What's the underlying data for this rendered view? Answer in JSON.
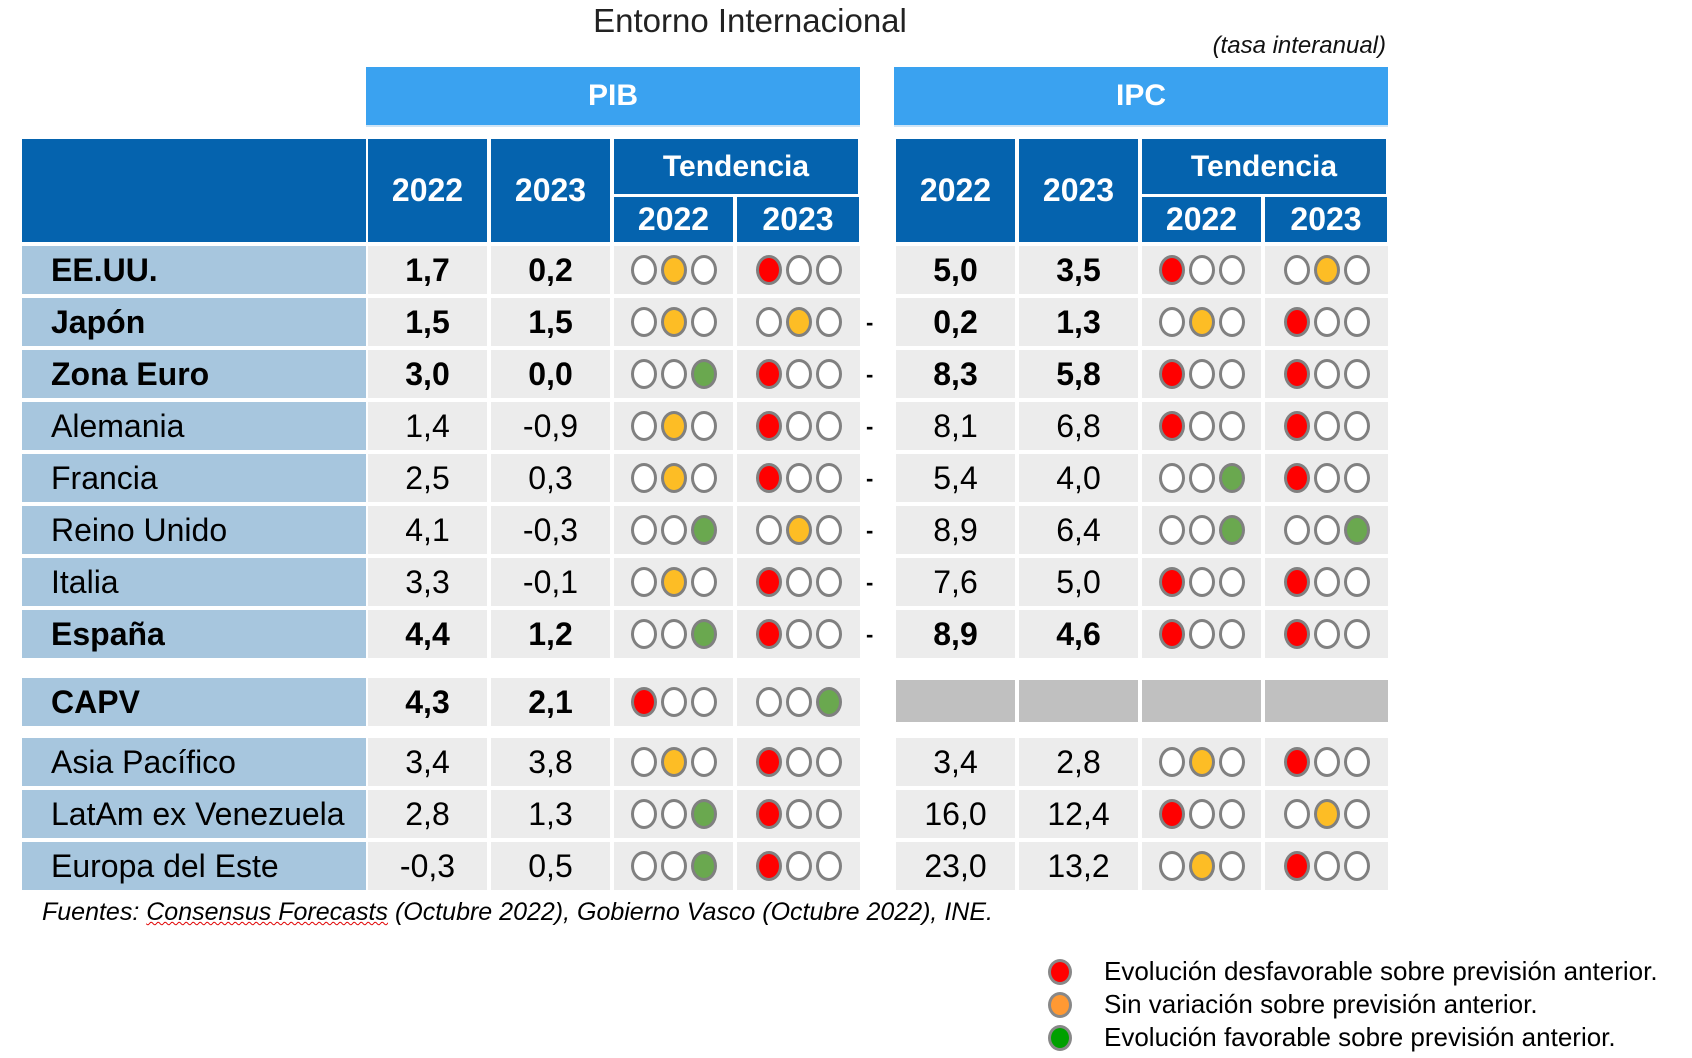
{
  "title": "Entorno Internacional",
  "subtitle": "(tasa interanual)",
  "sections": {
    "pib": "PIB",
    "ipc": "IPC"
  },
  "headers": {
    "y2022": "2022",
    "y2023": "2023",
    "tendencia": "Tendencia"
  },
  "rows": [
    {
      "name": "EE.UU.",
      "bold": true,
      "pib": [
        "1,7",
        "0,2"
      ],
      "pib_trend": [
        [
          "o",
          "a",
          "o"
        ],
        [
          "r",
          "o",
          "o"
        ]
      ],
      "ipc": [
        "5,0",
        "3,5"
      ],
      "ipc_trend": [
        [
          "r",
          "o",
          "o"
        ],
        [
          "o",
          "a",
          "o"
        ]
      ],
      "dash": ""
    },
    {
      "name": "Japón",
      "bold": true,
      "pib": [
        "1,5",
        "1,5"
      ],
      "pib_trend": [
        [
          "o",
          "a",
          "o"
        ],
        [
          "o",
          "a",
          "o"
        ]
      ],
      "ipc": [
        "0,2",
        "1,3"
      ],
      "ipc_trend": [
        [
          "o",
          "a",
          "o"
        ],
        [
          "r",
          "o",
          "o"
        ]
      ],
      "dash": "-"
    },
    {
      "name": "Zona Euro",
      "bold": true,
      "pib": [
        "3,0",
        "0,0"
      ],
      "pib_trend": [
        [
          "o",
          "o",
          "g"
        ],
        [
          "r",
          "o",
          "o"
        ]
      ],
      "ipc": [
        "8,3",
        "5,8"
      ],
      "ipc_trend": [
        [
          "r",
          "o",
          "o"
        ],
        [
          "r",
          "o",
          "o"
        ]
      ],
      "dash": "-"
    },
    {
      "name": "Alemania",
      "bold": false,
      "pib": [
        "1,4",
        "-0,9"
      ],
      "pib_trend": [
        [
          "o",
          "a",
          "o"
        ],
        [
          "r",
          "o",
          "o"
        ]
      ],
      "ipc": [
        "8,1",
        "6,8"
      ],
      "ipc_trend": [
        [
          "r",
          "o",
          "o"
        ],
        [
          "r",
          "o",
          "o"
        ]
      ],
      "dash": "-"
    },
    {
      "name": "Francia",
      "bold": false,
      "pib": [
        "2,5",
        "0,3"
      ],
      "pib_trend": [
        [
          "o",
          "a",
          "o"
        ],
        [
          "r",
          "o",
          "o"
        ]
      ],
      "ipc": [
        "5,4",
        "4,0"
      ],
      "ipc_trend": [
        [
          "o",
          "o",
          "g"
        ],
        [
          "r",
          "o",
          "o"
        ]
      ],
      "dash": "-"
    },
    {
      "name": "Reino Unido",
      "bold": false,
      "pib": [
        "4,1",
        "-0,3"
      ],
      "pib_trend": [
        [
          "o",
          "o",
          "g"
        ],
        [
          "o",
          "a",
          "o"
        ]
      ],
      "ipc": [
        "8,9",
        "6,4"
      ],
      "ipc_trend": [
        [
          "o",
          "o",
          "g"
        ],
        [
          "o",
          "o",
          "g"
        ]
      ],
      "dash": "-"
    },
    {
      "name": "Italia",
      "bold": false,
      "pib": [
        "3,3",
        "-0,1"
      ],
      "pib_trend": [
        [
          "o",
          "a",
          "o"
        ],
        [
          "r",
          "o",
          "o"
        ]
      ],
      "ipc": [
        "7,6",
        "5,0"
      ],
      "ipc_trend": [
        [
          "r",
          "o",
          "o"
        ],
        [
          "r",
          "o",
          "o"
        ]
      ],
      "dash": "-"
    },
    {
      "name": "España",
      "bold": true,
      "pib": [
        "4,4",
        "1,2"
      ],
      "pib_trend": [
        [
          "o",
          "o",
          "g"
        ],
        [
          "r",
          "o",
          "o"
        ]
      ],
      "ipc": [
        "8,9",
        "4,6"
      ],
      "ipc_trend": [
        [
          "r",
          "o",
          "o"
        ],
        [
          "r",
          "o",
          "o"
        ]
      ],
      "dash": "-"
    },
    {
      "name": "CAPV",
      "bold": true,
      "pib": [
        "4,3",
        "2,1"
      ],
      "pib_trend": [
        [
          "r",
          "o",
          "o"
        ],
        [
          "o",
          "o",
          "g"
        ]
      ],
      "ipc": null,
      "ipc_trend": null,
      "dash": ""
    },
    {
      "name": "Asia Pacífico",
      "bold": false,
      "pib": [
        "3,4",
        "3,8"
      ],
      "pib_trend": [
        [
          "o",
          "a",
          "o"
        ],
        [
          "r",
          "o",
          "o"
        ]
      ],
      "ipc": [
        "3,4",
        "2,8"
      ],
      "ipc_trend": [
        [
          "o",
          "a",
          "o"
        ],
        [
          "r",
          "o",
          "o"
        ]
      ],
      "dash": ""
    },
    {
      "name": "LatAm ex Venezuela",
      "bold": false,
      "pib": [
        "2,8",
        "1,3"
      ],
      "pib_trend": [
        [
          "o",
          "o",
          "g"
        ],
        [
          "r",
          "o",
          "o"
        ]
      ],
      "ipc": [
        "16,0",
        "12,4"
      ],
      "ipc_trend": [
        [
          "r",
          "o",
          "o"
        ],
        [
          "o",
          "a",
          "o"
        ]
      ],
      "dash": ""
    },
    {
      "name": "Europa del Este",
      "bold": false,
      "pib": [
        "-0,3",
        "0,5"
      ],
      "pib_trend": [
        [
          "o",
          "o",
          "g"
        ],
        [
          "r",
          "o",
          "o"
        ]
      ],
      "ipc": [
        "23,0",
        "13,2"
      ],
      "ipc_trend": [
        [
          "o",
          "a",
          "o"
        ],
        [
          "r",
          "o",
          "o"
        ]
      ],
      "dash": ""
    }
  ],
  "source": {
    "prefix": "Fuentes: ",
    "underlined": "Consensus Forecasts",
    "rest": " (Octubre 2022), Gobierno Vasco (Octubre 2022), INE."
  },
  "legend": [
    {
      "color": "#ff0000",
      "label": "Evolución desfavorable sobre previsión anterior."
    },
    {
      "color": "#ff9933",
      "label": "Sin variación sobre previsión anterior."
    },
    {
      "color": "#00a000",
      "label": "Evolución favorable sobre previsión anterior."
    }
  ]
}
